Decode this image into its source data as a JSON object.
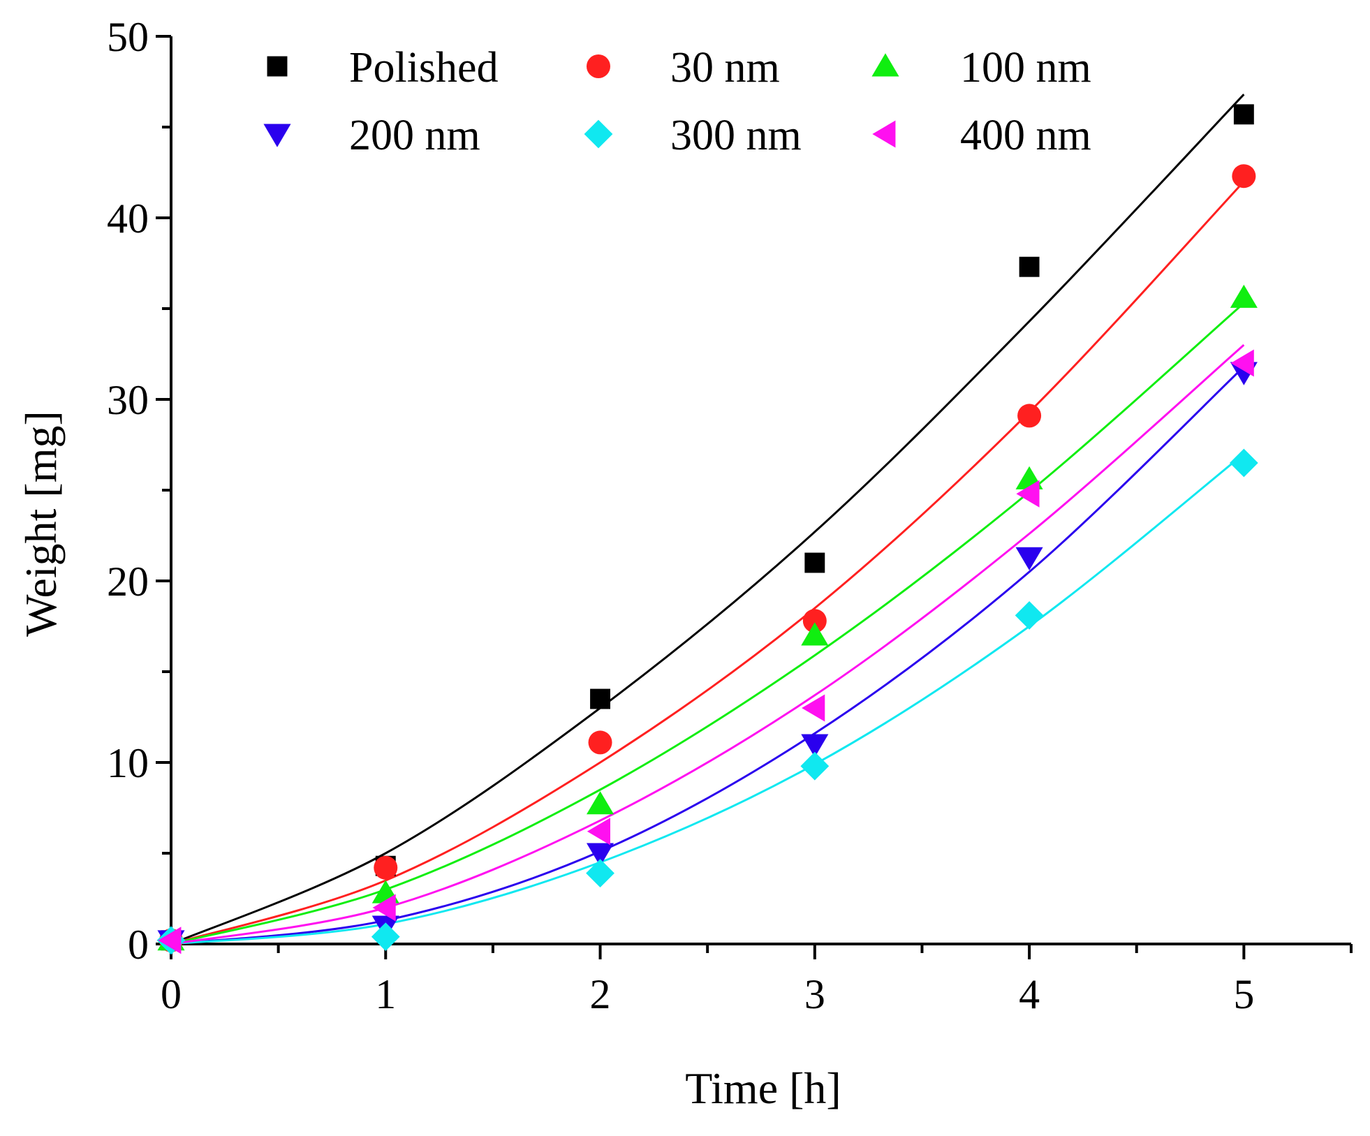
{
  "chart_data": {
    "type": "scatter",
    "title": "",
    "xlabel": "Time [h]",
    "ylabel": "Weight [mg]",
    "xlim": [
      0,
      5.5
    ],
    "ylim": [
      0,
      50
    ],
    "xticks": [
      0,
      1,
      2,
      3,
      4,
      5
    ],
    "yticks": [
      0,
      10,
      20,
      30,
      40,
      50
    ],
    "x_minor_step": 0.5,
    "y_minor_step": 5,
    "grid": false,
    "legend_position": "top",
    "fit_curves": true,
    "series": [
      {
        "name": "Polished",
        "marker": "square",
        "color": "#000000",
        "x": [
          0,
          1,
          2,
          3,
          4,
          5
        ],
        "y": [
          0.2,
          4.3,
          13.5,
          21.0,
          37.3,
          45.7
        ],
        "fit": [
          0,
          5.0,
          13.0,
          22.7,
          34.3,
          46.8
        ]
      },
      {
        "name": "30 nm",
        "marker": "circle",
        "color": "#ff2020",
        "x": [
          0,
          1,
          2,
          3,
          4,
          5
        ],
        "y": [
          0.2,
          4.2,
          11.1,
          17.8,
          29.1,
          42.3
        ],
        "fit": [
          0,
          3.5,
          10.0,
          18.5,
          29.3,
          42.0
        ]
      },
      {
        "name": "100 nm",
        "marker": "triangle-up",
        "color": "#10ee10",
        "x": [
          0,
          1,
          2,
          3,
          4,
          5
        ],
        "y": [
          0.2,
          2.8,
          7.7,
          17.0,
          25.6,
          35.6
        ],
        "fit": [
          0,
          3.0,
          8.5,
          15.9,
          24.9,
          35.3
        ]
      },
      {
        "name": "200 nm",
        "marker": "triangle-down",
        "color": "#2a00ee",
        "x": [
          0,
          1,
          2,
          3,
          4,
          5
        ],
        "y": [
          0.2,
          1.0,
          5.0,
          11.0,
          21.3,
          31.5
        ],
        "fit": [
          0,
          1.3,
          5.1,
          11.6,
          20.5,
          31.8
        ]
      },
      {
        "name": "300 nm",
        "marker": "diamond",
        "color": "#10e8f0",
        "x": [
          0,
          1,
          2,
          3,
          4,
          5
        ],
        "y": [
          0.2,
          0.4,
          3.9,
          9.8,
          18.1,
          26.5
        ],
        "fit": [
          0,
          1.1,
          4.5,
          9.9,
          17.5,
          27.0
        ]
      },
      {
        "name": "400 nm",
        "marker": "triangle-left",
        "color": "#ff10f0",
        "x": [
          0,
          1,
          2,
          3,
          4,
          5
        ],
        "y": [
          0.2,
          2.0,
          6.2,
          13.0,
          24.8,
          32.0
        ],
        "fit": [
          0,
          2.0,
          6.8,
          13.7,
          22.6,
          33.0
        ]
      }
    ]
  }
}
